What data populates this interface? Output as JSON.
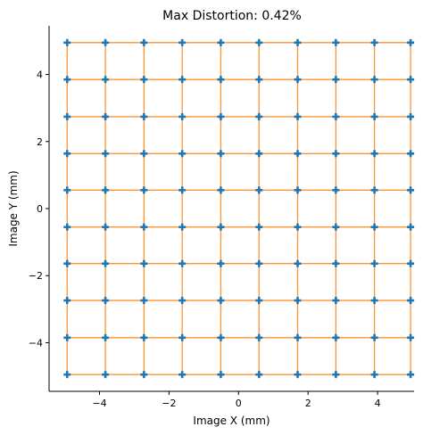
{
  "chart_data": {
    "type": "scatter",
    "title": "Max Distortion: 0.42%",
    "xlabel": "Image X (mm)",
    "ylabel": "Image Y (mm)",
    "xlim": [
      -5.45,
      5.05
    ],
    "ylim": [
      -5.45,
      5.45
    ],
    "xticks": [
      -4,
      -2,
      0,
      2,
      4
    ],
    "xtick_labels": [
      "−4",
      "−2",
      "0",
      "2",
      "4"
    ],
    "yticks": [
      -4,
      -2,
      0,
      2,
      4
    ],
    "ytick_labels": [
      "−4",
      "−2",
      "0",
      "2",
      "4"
    ],
    "grid": false,
    "x_positions": [
      -4.93,
      -3.83,
      -2.72,
      -1.62,
      -0.51,
      0.59,
      1.7,
      2.8,
      3.91,
      4.95
    ],
    "y_positions": [
      -4.95,
      -3.85,
      -2.74,
      -1.64,
      -0.55,
      0.55,
      1.64,
      2.74,
      3.85,
      4.95
    ],
    "series": [
      {
        "type": "line",
        "color": "#ff7f0e"
      },
      {
        "type": "scatter",
        "marker": "plus",
        "color": "#1f77b4"
      }
    ],
    "colors": {
      "points": "#1f77b4",
      "lines": "#ff7f0e"
    }
  }
}
